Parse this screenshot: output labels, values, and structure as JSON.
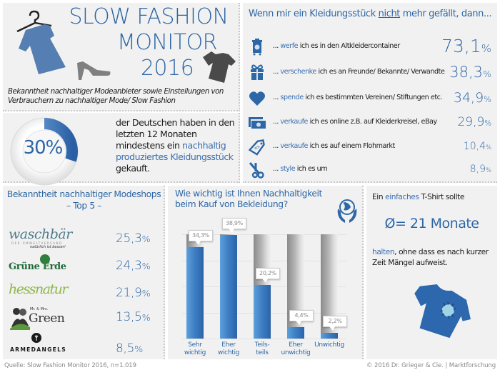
{
  "title": {
    "line1": "SLOW FASHION",
    "line2": "MONITOR",
    "line3": "2016",
    "subtitle": "Bekanntheit nachhaltiger Modeanbieter sowie Einstellungen von Verbrauchern zu nachhaltiger Mode/ Slow Fashion",
    "icons": [
      "dress-on-hanger-icon",
      "high-heel-shoe-icon",
      "tshirt-icon"
    ]
  },
  "donut": {
    "value_label": "30%",
    "value": 30,
    "text_pre": "der Deutschen haben in den letzten 12 Monaten mindestens ein ",
    "text_highlight": "nachhaltig produziertes Kleidungsstück",
    "text_post": " gekauft."
  },
  "disposal": {
    "title_pre": "Wenn mir ein Kleidungsstück ",
    "title_underline": "nicht",
    "title_post": " mehr gefällt, dann...",
    "items": [
      {
        "icon": "recycling-bin-icon",
        "prefix": "... ",
        "keyword": "werfe",
        "rest": " ich es in den Altkleidercontainer",
        "value": "73,1",
        "unit": "%"
      },
      {
        "icon": "gift-icon",
        "prefix": "... ",
        "keyword": "verschenke",
        "rest": " ich es an Freunde/ Bekannte/ Verwandte",
        "value": "38,3",
        "unit": "%"
      },
      {
        "icon": "heart-icon",
        "prefix": "... ",
        "keyword": "spende",
        "rest": " ich es bestimmten Vereinen/ Stiftungen etc.",
        "value": "34,9",
        "unit": "%"
      },
      {
        "icon": "money-bills-icon",
        "prefix": "... ",
        "keyword": "verkaufe",
        "rest": " ich es online z.B. auf Kleiderkreisel, eBay",
        "value": "29,9",
        "unit": "%"
      },
      {
        "icon": "price-tag-icon",
        "prefix": "... ",
        "keyword": "verkaufe",
        "rest": " ich es auf einem Flohmarkt",
        "value": "10,4",
        "unit": "%"
      },
      {
        "icon": "scissors-icon",
        "prefix": "... ",
        "keyword": "style",
        "rest": " ich es um",
        "value": "8,9",
        "unit": "%"
      }
    ]
  },
  "brands": {
    "title_line1": "Bekanntheit nachhaltiger Modeshops",
    "title_line2": "– Top 5 –",
    "items": [
      {
        "name": "waschbär",
        "tagline": "natürlich ist besser!",
        "value": "25,3",
        "unit": "%"
      },
      {
        "name": "Grüne Erde",
        "value": "24,3",
        "unit": "%"
      },
      {
        "name": "hessnatur",
        "value": "21,9",
        "unit": "%"
      },
      {
        "name": "Mr. & Mrs. Green",
        "value": "13,5",
        "unit": "%"
      },
      {
        "name": "ARMEDANGELS",
        "value": "8,5",
        "unit": "%"
      }
    ]
  },
  "chart": {
    "title": "Wie wichtig ist Ihnen Nachhaltigkeit beim Kauf von Bekleidung?",
    "icon": "globe-in-hands-icon"
  },
  "chart_data": {
    "type": "bar",
    "title": "Wie wichtig ist Ihnen Nachhaltigkeit beim Kauf von Bekleidung?",
    "categories": [
      "Sehr wichtig",
      "Eher wichtig",
      "Teils-teils",
      "Eher unwichtig",
      "Unwichtig"
    ],
    "values": [
      34.3,
      38.9,
      20.2,
      4.4,
      2.2
    ],
    "labels": [
      "34,3%",
      "38,9%",
      "20,2%",
      "4,4%",
      "2,2%"
    ],
    "category_lines": [
      [
        "Sehr",
        "wichtig"
      ],
      [
        "Eher",
        "wichtig"
      ],
      [
        "Teils-",
        "teils"
      ],
      [
        "Eher",
        "unwichtig"
      ],
      [
        "Unwichtig",
        ""
      ]
    ],
    "xlabel": "",
    "ylabel": "",
    "ylim": [
      0,
      100
    ],
    "grid": true,
    "legend": "none"
  },
  "tshirt": {
    "line1_pre": "Ein ",
    "line1_highlight": "einfaches",
    "line1_post": " T-Shirt sollte",
    "big": "Ø= 21 Monate",
    "line2_highlight": "halten",
    "line2_post": ", ohne dass es nach kurzer Zeit Mängel aufweist.",
    "icon": "patched-tshirt-icon"
  },
  "footer": {
    "source": "Quelle: Slow Fashion Monitor 2016, n=1.019",
    "copyright": "© 2016 Dr. Grieger & Cie. | Marktforschung"
  },
  "colors": {
    "accent": "#2e67a6",
    "bar": "#3f80c6",
    "panel": "#f1f1f1",
    "separator": "#c9c9c9"
  }
}
